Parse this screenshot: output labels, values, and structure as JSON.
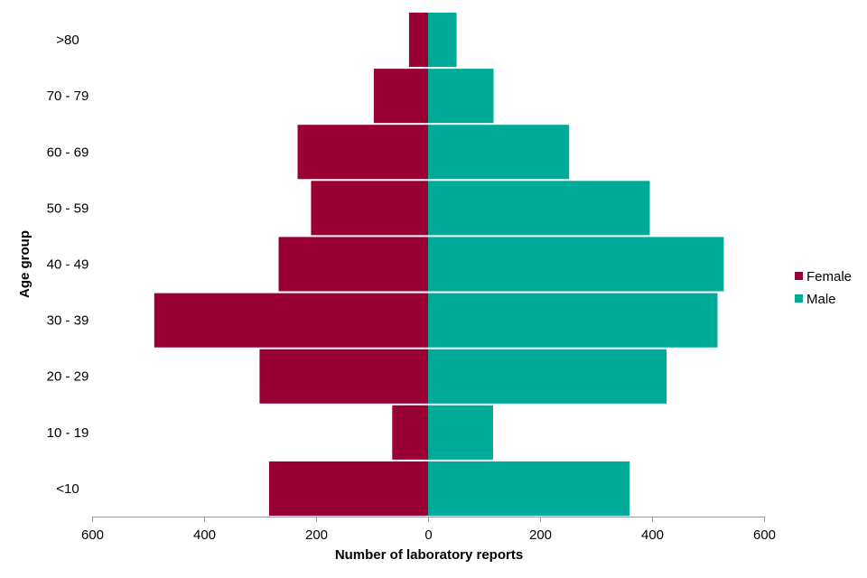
{
  "chart_data": {
    "type": "bar",
    "orientation": "horizontal",
    "layout": "population-pyramid",
    "categories": [
      "<10",
      "10 - 19",
      "20 - 29",
      "30 - 39",
      "40 - 49",
      "50 - 59",
      "60 - 69",
      "70 - 79",
      ">80"
    ],
    "series": [
      {
        "name": "Female",
        "color": "#990033",
        "side": "left",
        "values": [
          284,
          64,
          301,
          489,
          267,
          209,
          233,
          97,
          34
        ]
      },
      {
        "name": "Male",
        "color": "#00AA99",
        "side": "right",
        "values": [
          360,
          116,
          426,
          517,
          528,
          396,
          252,
          117,
          51
        ]
      }
    ],
    "xlim": [
      -600,
      600
    ],
    "xticks": [
      -600,
      -400,
      -200,
      0,
      200,
      400,
      600
    ],
    "xtick_labels": [
      "600",
      "400",
      "200",
      "0",
      "200",
      "400",
      "600"
    ],
    "xlabel": "Number of laboratory reports",
    "ylabel": "Age group",
    "title": "",
    "grid": false,
    "legend": {
      "position": "right",
      "entries": [
        "Female",
        "Male"
      ]
    }
  }
}
